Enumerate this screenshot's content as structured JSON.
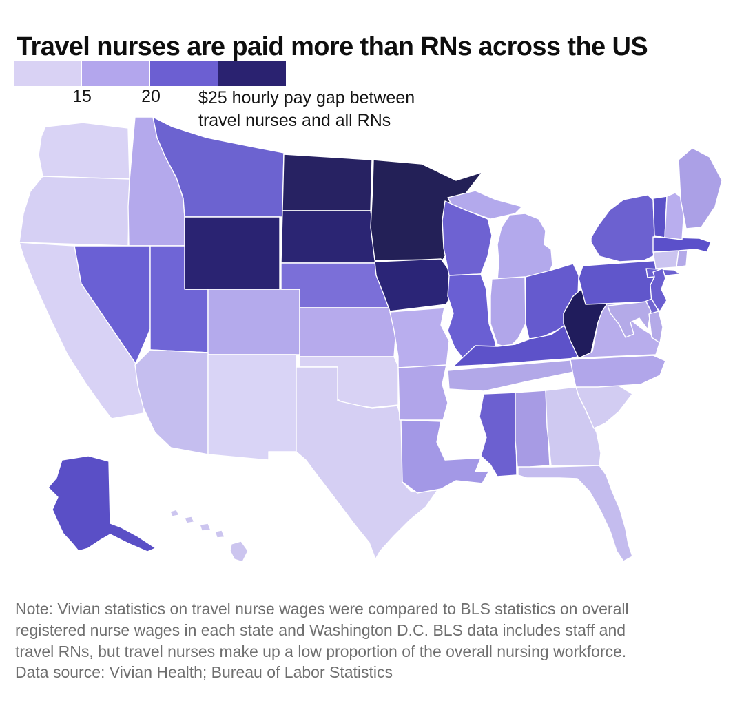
{
  "header": {
    "title": "Travel nurses are paid more than RNs across the US"
  },
  "legend": {
    "tick_labels": [
      "15",
      "20"
    ],
    "max_label_lines": [
      "$25 hourly pay gap between",
      "travel nurses and all RNs"
    ],
    "colors": [
      "#d9d2f4",
      "#b3a6ed",
      "#6c5fd2",
      "#2a2270"
    ],
    "thresholds": [
      15,
      20,
      25
    ],
    "unit": "$ per hour"
  },
  "footer": {
    "note_lines": [
      "Note: Vivian statistics on travel nurse wages were compared to BLS statistics on overall",
      "registered nurse wages in each state and Washington D.C. BLS data includes staff and",
      "travel RNs, but travel nurses make up a low proportion of the overall nursing workforce."
    ],
    "source": "Data source: Vivian Health; Bureau of Labor Statistics"
  },
  "chart_data": {
    "type": "choropleth_map",
    "region": "United States",
    "title": "Travel nurses are paid more than RNs across the US",
    "metric": "Hourly pay gap between travel nurses and all RNs",
    "unit": "USD per hour",
    "legend_thresholds": [
      15,
      20,
      25
    ],
    "legend_bins": [
      "under 15",
      "15-20",
      "20-25",
      "25 and over"
    ],
    "states": [
      {
        "abbr": "WA",
        "name": "Washington",
        "approx_gap_usd": 13,
        "color": "#d9d3f5"
      },
      {
        "abbr": "OR",
        "name": "Oregon",
        "approx_gap_usd": 13,
        "color": "#d6d0f4"
      },
      {
        "abbr": "CA",
        "name": "California",
        "approx_gap_usd": 13,
        "color": "#d8d2f5"
      },
      {
        "abbr": "ID",
        "name": "Idaho",
        "approx_gap_usd": 17,
        "color": "#b4a9ec"
      },
      {
        "abbr": "NV",
        "name": "Nevada",
        "approx_gap_usd": 22,
        "color": "#6a60d4"
      },
      {
        "abbr": "UT",
        "name": "Utah",
        "approx_gap_usd": 22,
        "color": "#6f65d6"
      },
      {
        "abbr": "MT",
        "name": "Montana",
        "approx_gap_usd": 22,
        "color": "#6c63d0"
      },
      {
        "abbr": "WY",
        "name": "Wyoming",
        "approx_gap_usd": 27,
        "color": "#2a2372"
      },
      {
        "abbr": "CO",
        "name": "Colorado",
        "approx_gap_usd": 17,
        "color": "#b4aaec"
      },
      {
        "abbr": "AZ",
        "name": "Arizona",
        "approx_gap_usd": 16,
        "color": "#c5beef"
      },
      {
        "abbr": "NM",
        "name": "New Mexico",
        "approx_gap_usd": 12,
        "color": "#d9d4f6"
      },
      {
        "abbr": "ND",
        "name": "North Dakota",
        "approx_gap_usd": 27,
        "color": "#272262"
      },
      {
        "abbr": "SD",
        "name": "South Dakota",
        "approx_gap_usd": 27,
        "color": "#2b2573"
      },
      {
        "abbr": "NE",
        "name": "Nebraska",
        "approx_gap_usd": 21,
        "color": "#7b6fd8"
      },
      {
        "abbr": "KS",
        "name": "Kansas",
        "approx_gap_usd": 17,
        "color": "#b6aaec"
      },
      {
        "abbr": "OK",
        "name": "Oklahoma",
        "approx_gap_usd": 13,
        "color": "#d8d2f4"
      },
      {
        "abbr": "TX",
        "name": "Texas",
        "approx_gap_usd": 13,
        "color": "#d5cff3"
      },
      {
        "abbr": "MN",
        "name": "Minnesota",
        "approx_gap_usd": 28,
        "color": "#232057"
      },
      {
        "abbr": "IA",
        "name": "Iowa",
        "approx_gap_usd": 26,
        "color": "#2b2577"
      },
      {
        "abbr": "MO",
        "name": "Missouri",
        "approx_gap_usd": 17,
        "color": "#b9aeee"
      },
      {
        "abbr": "AR",
        "name": "Arkansas",
        "approx_gap_usd": 17,
        "color": "#b1a5ea"
      },
      {
        "abbr": "LA",
        "name": "Louisiana",
        "approx_gap_usd": 19,
        "color": "#a398e6"
      },
      {
        "abbr": "WI",
        "name": "Wisconsin",
        "approx_gap_usd": 22,
        "color": "#6e62d2"
      },
      {
        "abbr": "IL",
        "name": "Illinois",
        "approx_gap_usd": 22,
        "color": "#6a5fd3"
      },
      {
        "abbr": "MI",
        "name": "Michigan",
        "approx_gap_usd": 17,
        "color": "#b3a9ec"
      },
      {
        "abbr": "IN",
        "name": "Indiana",
        "approx_gap_usd": 17,
        "color": "#b1a6ea"
      },
      {
        "abbr": "OH",
        "name": "Ohio",
        "approx_gap_usd": 23,
        "color": "#655ace"
      },
      {
        "abbr": "KY",
        "name": "Kentucky",
        "approx_gap_usd": 23,
        "color": "#5d52c9"
      },
      {
        "abbr": "TN",
        "name": "Tennessee",
        "approx_gap_usd": 17,
        "color": "#b2a8e8"
      },
      {
        "abbr": "MS",
        "name": "Mississippi",
        "approx_gap_usd": 22,
        "color": "#6c60d0"
      },
      {
        "abbr": "AL",
        "name": "Alabama",
        "approx_gap_usd": 19,
        "color": "#a79be4"
      },
      {
        "abbr": "GA",
        "name": "Georgia",
        "approx_gap_usd": 14,
        "color": "#cfc9f1"
      },
      {
        "abbr": "SC",
        "name": "South Carolina",
        "approx_gap_usd": 14,
        "color": "#d2ccf2"
      },
      {
        "abbr": "FL",
        "name": "Florida",
        "approx_gap_usd": 15,
        "color": "#c4bcee"
      },
      {
        "abbr": "NC",
        "name": "North Carolina",
        "approx_gap_usd": 17,
        "color": "#b1a6ea"
      },
      {
        "abbr": "VA",
        "name": "Virginia",
        "approx_gap_usd": 17,
        "color": "#b8adec"
      },
      {
        "abbr": "WV",
        "name": "West Virginia",
        "approx_gap_usd": 28,
        "color": "#201c5c"
      },
      {
        "abbr": "PA",
        "name": "Pennsylvania",
        "approx_gap_usd": 23,
        "color": "#6056cb"
      },
      {
        "abbr": "NY",
        "name": "New York",
        "approx_gap_usd": 22,
        "color": "#6c61d0"
      },
      {
        "abbr": "NJ",
        "name": "New Jersey",
        "approx_gap_usd": 22,
        "color": "#6a5ed0"
      },
      {
        "abbr": "DE",
        "name": "Delaware",
        "approx_gap_usd": 22,
        "color": "#7165d0"
      },
      {
        "abbr": "MD",
        "name": "Maryland",
        "approx_gap_usd": 17,
        "color": "#b4aae8"
      },
      {
        "abbr": "CT",
        "name": "Connecticut",
        "approx_gap_usd": 14,
        "color": "#cbc4f0"
      },
      {
        "abbr": "RI",
        "name": "Rhode Island",
        "approx_gap_usd": 18,
        "color": "#b3a9e8"
      },
      {
        "abbr": "MA",
        "name": "Massachusetts",
        "approx_gap_usd": 23,
        "color": "#5b50ca"
      },
      {
        "abbr": "VT",
        "name": "Vermont",
        "approx_gap_usd": 23,
        "color": "#5b51c8"
      },
      {
        "abbr": "NH",
        "name": "New Hampshire",
        "approx_gap_usd": 17,
        "color": "#b9aeee"
      },
      {
        "abbr": "ME",
        "name": "Maine",
        "approx_gap_usd": 18,
        "color": "#aba0e6"
      },
      {
        "abbr": "AK",
        "name": "Alaska",
        "approx_gap_usd": 22,
        "color": "#5a4fc6"
      },
      {
        "abbr": "HI",
        "name": "Hawaii",
        "approx_gap_usd": 15,
        "color": "#ccc5ef"
      }
    ]
  }
}
